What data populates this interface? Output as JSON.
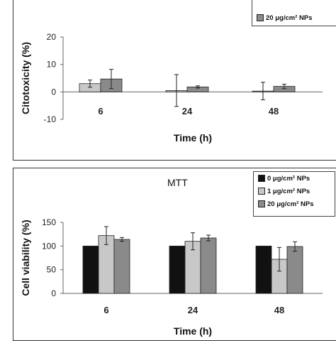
{
  "chart_data": [
    {
      "type": "bar",
      "title": "",
      "xlabel": "Time (h)",
      "ylabel": "Citotoxicity (%)",
      "categories": [
        "6",
        "24",
        "48"
      ],
      "ylim": [
        -10,
        20
      ],
      "yticks": [
        -10,
        0,
        10,
        20
      ],
      "series": [
        {
          "name": "1 μg/cm² NPs",
          "color": "#c8c8c8",
          "values": [
            3.0,
            0.5,
            0.3
          ],
          "errors": [
            1.3,
            5.8,
            3.2
          ]
        },
        {
          "name": "20 μg/cm²  NPs",
          "color": "#8a8a8a",
          "values": [
            4.7,
            1.8,
            2.0
          ],
          "errors": [
            3.5,
            0.4,
            0.8
          ]
        }
      ],
      "legend_visible": [
        "20 μg/cm²  NPs"
      ],
      "legend": "top-right",
      "grid": false
    },
    {
      "type": "bar",
      "title": "MTT",
      "xlabel": "Time (h)",
      "ylabel": "Cell viability (%)",
      "categories": [
        "6",
        "24",
        "48"
      ],
      "ylim": [
        0,
        150
      ],
      "yticks": [
        0,
        50,
        100,
        150
      ],
      "series": [
        {
          "name": "0 μg/cm²  NPs",
          "color": "#111111",
          "values": [
            100,
            100,
            100
          ],
          "errors": [
            0,
            0,
            0
          ]
        },
        {
          "name": "1 μg/cm²  NPs",
          "color": "#c8c8c8",
          "values": [
            122,
            110,
            72
          ],
          "errors": [
            19,
            18,
            25
          ]
        },
        {
          "name": "20 μg/cm²  NPs",
          "color": "#8a8a8a",
          "values": [
            114,
            117,
            99
          ],
          "errors": [
            4,
            6,
            10
          ]
        }
      ],
      "legend": "top-right",
      "grid": false
    }
  ]
}
